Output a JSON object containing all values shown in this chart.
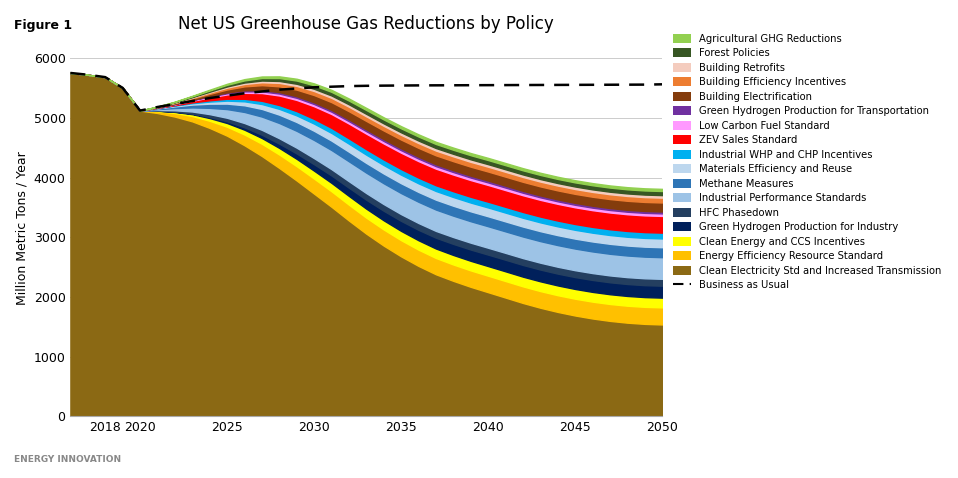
{
  "title": "Net US Greenhouse Gas Reductions by Policy",
  "figure_label": "Figure 1",
  "ylabel": "Million Metric Tons / Year",
  "years": [
    2016,
    2017,
    2018,
    2019,
    2020,
    2021,
    2022,
    2023,
    2024,
    2025,
    2026,
    2027,
    2028,
    2029,
    2030,
    2031,
    2032,
    2033,
    2034,
    2035,
    2036,
    2037,
    2038,
    2039,
    2040,
    2041,
    2042,
    2043,
    2044,
    2045,
    2046,
    2047,
    2048,
    2049,
    2050
  ],
  "bau": [
    5750,
    5720,
    5680,
    5500,
    5120,
    5180,
    5230,
    5280,
    5330,
    5370,
    5410,
    5440,
    5470,
    5490,
    5510,
    5520,
    5530,
    5535,
    5538,
    5540,
    5542,
    5543,
    5544,
    5545,
    5546,
    5547,
    5548,
    5549,
    5550,
    5551,
    5552,
    5553,
    5554,
    5555,
    5560
  ],
  "policies_stack": [
    {
      "name": "Clean Electricity Std and Increased Transmission",
      "color": "#8B6914",
      "values": [
        5750,
        5720,
        5680,
        5500,
        5120,
        5080,
        5020,
        4940,
        4830,
        4700,
        4540,
        4360,
        4160,
        3950,
        3730,
        3510,
        3280,
        3060,
        2860,
        2680,
        2520,
        2380,
        2270,
        2170,
        2080,
        1990,
        1900,
        1820,
        1750,
        1690,
        1640,
        1600,
        1570,
        1550,
        1540
      ]
    },
    {
      "name": "Energy Efficiency Resource Standard",
      "color": "#FFC000",
      "values": [
        0,
        0,
        0,
        0,
        0,
        30,
        60,
        90,
        120,
        150,
        180,
        205,
        225,
        240,
        252,
        260,
        265,
        268,
        270,
        271,
        272,
        273,
        274,
        275,
        276,
        277,
        278,
        279,
        280,
        281,
        282,
        283,
        284,
        285,
        286
      ]
    },
    {
      "name": "Clean Energy and CCS Incentives",
      "color": "#FFFF00",
      "values": [
        0,
        0,
        0,
        0,
        0,
        8,
        18,
        30,
        45,
        62,
        80,
        96,
        110,
        122,
        132,
        140,
        146,
        150,
        153,
        155,
        157,
        158,
        159,
        160,
        161,
        162,
        162,
        163,
        163,
        163,
        163,
        163,
        163,
        163,
        163
      ]
    },
    {
      "name": "Green Hydrogen Production for Industry",
      "color": "#00205B",
      "values": [
        0,
        0,
        0,
        0,
        0,
        2,
        5,
        10,
        18,
        28,
        40,
        55,
        72,
        90,
        108,
        124,
        138,
        150,
        160,
        168,
        175,
        181,
        185,
        189,
        192,
        194,
        196,
        197,
        198,
        199,
        200,
        200,
        200,
        200,
        200
      ]
    },
    {
      "name": "HFC Phasedown",
      "color": "#243F60",
      "values": [
        0,
        0,
        0,
        0,
        0,
        10,
        22,
        35,
        48,
        60,
        72,
        82,
        90,
        97,
        102,
        106,
        109,
        111,
        112,
        113,
        114,
        114,
        115,
        115,
        115,
        115,
        115,
        115,
        115,
        115,
        115,
        115,
        115,
        115,
        115
      ]
    },
    {
      "name": "Industrial Performance Standards",
      "color": "#9DC3E6",
      "values": [
        0,
        0,
        0,
        0,
        0,
        15,
        38,
        68,
        105,
        145,
        185,
        222,
        255,
        282,
        304,
        320,
        333,
        342,
        348,
        352,
        355,
        357,
        358,
        359,
        360,
        360,
        361,
        361,
        362,
        362,
        362,
        362,
        362,
        362,
        362
      ]
    },
    {
      "name": "Methane Measures",
      "color": "#2E75B6",
      "values": [
        0,
        0,
        0,
        0,
        0,
        12,
        28,
        48,
        70,
        92,
        112,
        128,
        140,
        148,
        154,
        158,
        161,
        163,
        164,
        165,
        165,
        166,
        166,
        166,
        167,
        167,
        167,
        167,
        167,
        167,
        167,
        167,
        167,
        167,
        167
      ]
    },
    {
      "name": "Materials Efficiency and Reuse",
      "color": "#BDD7EE",
      "values": [
        0,
        0,
        0,
        0,
        0,
        5,
        12,
        22,
        35,
        50,
        66,
        82,
        97,
        110,
        120,
        128,
        134,
        138,
        141,
        143,
        144,
        145,
        146,
        146,
        147,
        147,
        147,
        147,
        147,
        147,
        147,
        147,
        147,
        147,
        147
      ]
    },
    {
      "name": "Industrial WHP and CHP Incentives",
      "color": "#00B0F0",
      "values": [
        0,
        0,
        0,
        0,
        0,
        3,
        7,
        14,
        22,
        32,
        43,
        54,
        64,
        72,
        79,
        85,
        89,
        92,
        94,
        95,
        96,
        96,
        97,
        97,
        97,
        97,
        97,
        97,
        97,
        97,
        97,
        97,
        97,
        97,
        97
      ]
    },
    {
      "name": "ZEV Sales Standard",
      "color": "#FF0000",
      "values": [
        0,
        0,
        0,
        0,
        0,
        5,
        14,
        28,
        48,
        72,
        100,
        130,
        160,
        188,
        212,
        232,
        248,
        260,
        268,
        273,
        276,
        278,
        279,
        280,
        280,
        280,
        280,
        280,
        280,
        280,
        280,
        280,
        280,
        280,
        280
      ]
    },
    {
      "name": "Low Carbon Fuel Standard",
      "color": "#FF99FF",
      "values": [
        0,
        0,
        0,
        0,
        0,
        2,
        5,
        9,
        14,
        19,
        24,
        28,
        32,
        35,
        37,
        39,
        40,
        41,
        41,
        42,
        42,
        42,
        42,
        42,
        42,
        42,
        42,
        42,
        42,
        42,
        42,
        42,
        42,
        42,
        42
      ]
    },
    {
      "name": "Green Hydrogen Production for Transportation",
      "color": "#7030A0",
      "values": [
        0,
        0,
        0,
        0,
        0,
        1,
        3,
        6,
        10,
        14,
        18,
        22,
        25,
        27,
        29,
        30,
        31,
        31,
        32,
        32,
        32,
        32,
        32,
        32,
        32,
        32,
        32,
        32,
        32,
        32,
        32,
        32,
        32,
        32,
        32
      ]
    },
    {
      "name": "Building Electrification",
      "color": "#843C0C",
      "values": [
        0,
        0,
        0,
        0,
        0,
        5,
        12,
        22,
        35,
        50,
        66,
        82,
        97,
        110,
        121,
        130,
        136,
        141,
        144,
        146,
        148,
        149,
        150,
        150,
        151,
        151,
        151,
        151,
        151,
        151,
        151,
        151,
        151,
        151,
        151
      ]
    },
    {
      "name": "Building Efficiency Incentives",
      "color": "#ED7D31",
      "values": [
        0,
        0,
        0,
        0,
        0,
        3,
        8,
        14,
        22,
        31,
        40,
        49,
        57,
        63,
        68,
        72,
        75,
        77,
        78,
        79,
        80,
        80,
        81,
        81,
        81,
        81,
        81,
        81,
        81,
        81,
        81,
        81,
        81,
        81,
        81
      ]
    },
    {
      "name": "Building Retrofits",
      "color": "#F4CCBE",
      "values": [
        0,
        0,
        0,
        0,
        0,
        2,
        5,
        9,
        14,
        19,
        24,
        28,
        32,
        35,
        37,
        39,
        40,
        41,
        41,
        42,
        42,
        42,
        42,
        42,
        42,
        42,
        42,
        42,
        42,
        42,
        42,
        42,
        42,
        42,
        42
      ]
    },
    {
      "name": "Forest Policies",
      "color": "#375623",
      "values": [
        0,
        0,
        0,
        0,
        0,
        3,
        8,
        14,
        21,
        28,
        36,
        43,
        49,
        54,
        58,
        61,
        63,
        65,
        66,
        67,
        68,
        68,
        68,
        69,
        69,
        69,
        69,
        69,
        69,
        69,
        69,
        69,
        69,
        69,
        69
      ]
    },
    {
      "name": "Agricultural GHG Reductions",
      "color": "#92D050",
      "values": [
        0,
        0,
        0,
        0,
        0,
        2,
        5,
        9,
        13,
        17,
        21,
        25,
        28,
        30,
        32,
        33,
        34,
        35,
        35,
        36,
        36,
        36,
        36,
        36,
        36,
        36,
        36,
        36,
        36,
        36,
        36,
        36,
        36,
        36,
        36
      ]
    }
  ],
  "xlim": [
    2016,
    2050
  ],
  "ylim": [
    0,
    6300
  ],
  "yticks": [
    0,
    1000,
    2000,
    3000,
    4000,
    5000,
    6000
  ],
  "xticks": [
    2018,
    2020,
    2025,
    2030,
    2035,
    2040,
    2045,
    2050
  ],
  "background_color": "#FFFFFF",
  "grid_color": "#CCCCCC"
}
